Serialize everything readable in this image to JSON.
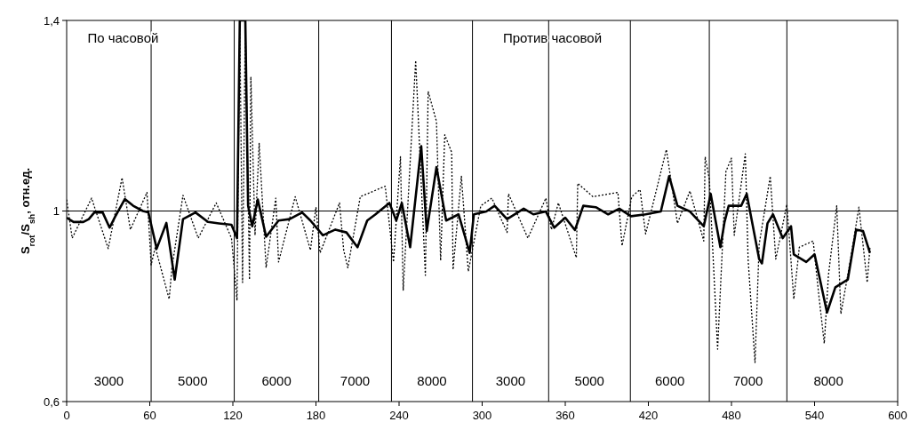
{
  "chart_data": {
    "type": "line",
    "ylabel": "S$_{rot}$/S$_{sh}$, отн.ед.",
    "annotations": [
      "По часовой",
      "Против часовой",
      "3000",
      "5000",
      "6000",
      "7000",
      "8000",
      "3000",
      "5000",
      "6000",
      "7000",
      "8000"
    ],
    "xlim": [
      0,
      600
    ],
    "xticks": [
      0,
      60,
      120,
      180,
      240,
      300,
      360,
      420,
      480,
      540,
      600
    ],
    "ylim": [
      0.6,
      1.4
    ],
    "yticks": [
      {
        "value": 0.6,
        "label": "0,6"
      },
      1,
      {
        "value": 1.4,
        "label": "1,4"
      }
    ],
    "grid": false,
    "marker": "none",
    "ref_lines": [
      {
        "axis": "y",
        "value": 1,
        "color": "#000000"
      },
      {
        "axis": "x",
        "value": 61,
        "color": "#000000"
      },
      {
        "axis": "x",
        "value": 121,
        "color": "#000000"
      },
      {
        "axis": "x",
        "value": 182,
        "color": "#000000"
      },
      {
        "axis": "x",
        "value": 234.5,
        "color": "#000000"
      },
      {
        "axis": "x",
        "value": 293,
        "color": "#000000"
      },
      {
        "axis": "x",
        "value": 348,
        "color": "#000000"
      },
      {
        "axis": "x",
        "value": 407,
        "color": "#000000"
      },
      {
        "axis": "x",
        "value": 464,
        "color": "#000000"
      },
      {
        "axis": "x",
        "value": 520,
        "color": "#000000"
      }
    ],
    "series": [
      {
        "color": "#000000",
        "line_style": "dotted",
        "x": [
          0,
          4,
          18,
          30,
          40,
          46,
          58,
          61,
          64,
          74,
          76,
          84,
          95,
          108,
          119,
          123,
          125,
          127,
          129,
          132,
          133,
          136,
          139,
          144,
          151,
          153,
          165,
          176,
          180,
          183,
          197,
          200,
          203,
          212,
          230,
          236,
          241,
          243,
          252,
          259,
          261,
          267,
          270,
          273,
          278,
          279,
          285,
          290,
          299,
          307,
          318,
          319,
          333,
          346,
          350,
          355,
          368,
          369,
          380,
          398,
          401,
          408,
          414,
          418,
          433,
          441,
          450,
          460,
          461,
          464,
          470,
          476,
          480,
          482,
          490,
          492,
          497,
          500,
          508,
          512,
          520,
          525,
          529,
          539,
          543,
          547,
          550,
          556,
          559,
          566,
          572,
          578,
          580
        ],
        "values": [
          1.024,
          0.943,
          1.027,
          0.921,
          1.07,
          0.961,
          1.039,
          0.887,
          0.924,
          0.815,
          0.881,
          1.033,
          0.943,
          1.017,
          0.943,
          0.812,
          1.4,
          0.85,
          1.4,
          0.856,
          1.282,
          0.949,
          1.142,
          0.881,
          1.027,
          0.893,
          1.03,
          0.918,
          1.008,
          0.912,
          1.017,
          0.918,
          0.881,
          1.03,
          1.052,
          0.893,
          1.114,
          0.834,
          1.316,
          0.865,
          1.251,
          1.188,
          0.896,
          1.16,
          1.123,
          0.877,
          1.073,
          0.873,
          1.011,
          1.027,
          0.955,
          1.036,
          0.943,
          1.027,
          0.961,
          1.017,
          0.902,
          1.058,
          1.03,
          1.039,
          0.927,
          1.03,
          1.045,
          0.952,
          1.129,
          0.974,
          1.042,
          0.937,
          1.114,
          1.067,
          0.71,
          1.083,
          1.111,
          0.949,
          1.12,
          0.899,
          0.682,
          0.93,
          1.073,
          0.899,
          1.014,
          0.815,
          0.924,
          0.937,
          0.825,
          0.722,
          0.865,
          1.011,
          0.784,
          0.899,
          1.008,
          0.85,
          0.924
        ]
      },
      {
        "color": "#000000",
        "line_style": "solid",
        "x": [
          0,
          5,
          12,
          16,
          20,
          26,
          31,
          35,
          42,
          48,
          55,
          59,
          65,
          72,
          78,
          84,
          93,
          102,
          110,
          119,
          123,
          125,
          129,
          131,
          134,
          138,
          144,
          153,
          161,
          170,
          176,
          185,
          194,
          202,
          210,
          217,
          223,
          233,
          238,
          242,
          248,
          256,
          260,
          267,
          274,
          283,
          291,
          294,
          303,
          309,
          318,
          330,
          337,
          346,
          352,
          360,
          367,
          373,
          382,
          391,
          399,
          407.5,
          418,
          429,
          435,
          441,
          450,
          460,
          465,
          472,
          475,
          478,
          487,
          491,
          500,
          502,
          506,
          510,
          517,
          523,
          525,
          534,
          540,
          549,
          555,
          564,
          570,
          575,
          580
        ],
        "values": [
          0.986,
          0.977,
          0.977,
          0.983,
          0.997,
          0.997,
          0.965,
          0.988,
          1.025,
          1.011,
          1.0,
          0.997,
          0.921,
          0.975,
          0.856,
          0.983,
          0.997,
          0.977,
          0.974,
          0.971,
          0.943,
          1.4,
          1.4,
          1.011,
          0.968,
          1.024,
          0.946,
          0.98,
          0.983,
          0.997,
          0.98,
          0.949,
          0.961,
          0.955,
          0.924,
          0.98,
          0.993,
          1.017,
          0.98,
          1.017,
          0.924,
          1.136,
          0.958,
          1.092,
          0.98,
          0.993,
          0.912,
          0.993,
          0.999,
          1.011,
          0.983,
          1.005,
          0.993,
          0.999,
          0.965,
          0.986,
          0.96,
          1.011,
          1.008,
          0.993,
          1.005,
          0.989,
          0.993,
          0.999,
          1.073,
          1.011,
          0.999,
          0.968,
          1.036,
          0.924,
          0.977,
          1.011,
          1.011,
          1.036,
          0.899,
          0.89,
          0.974,
          0.993,
          0.943,
          0.968,
          0.909,
          0.893,
          0.909,
          0.787,
          0.84,
          0.856,
          0.961,
          0.958,
          0.912
        ]
      }
    ]
  }
}
